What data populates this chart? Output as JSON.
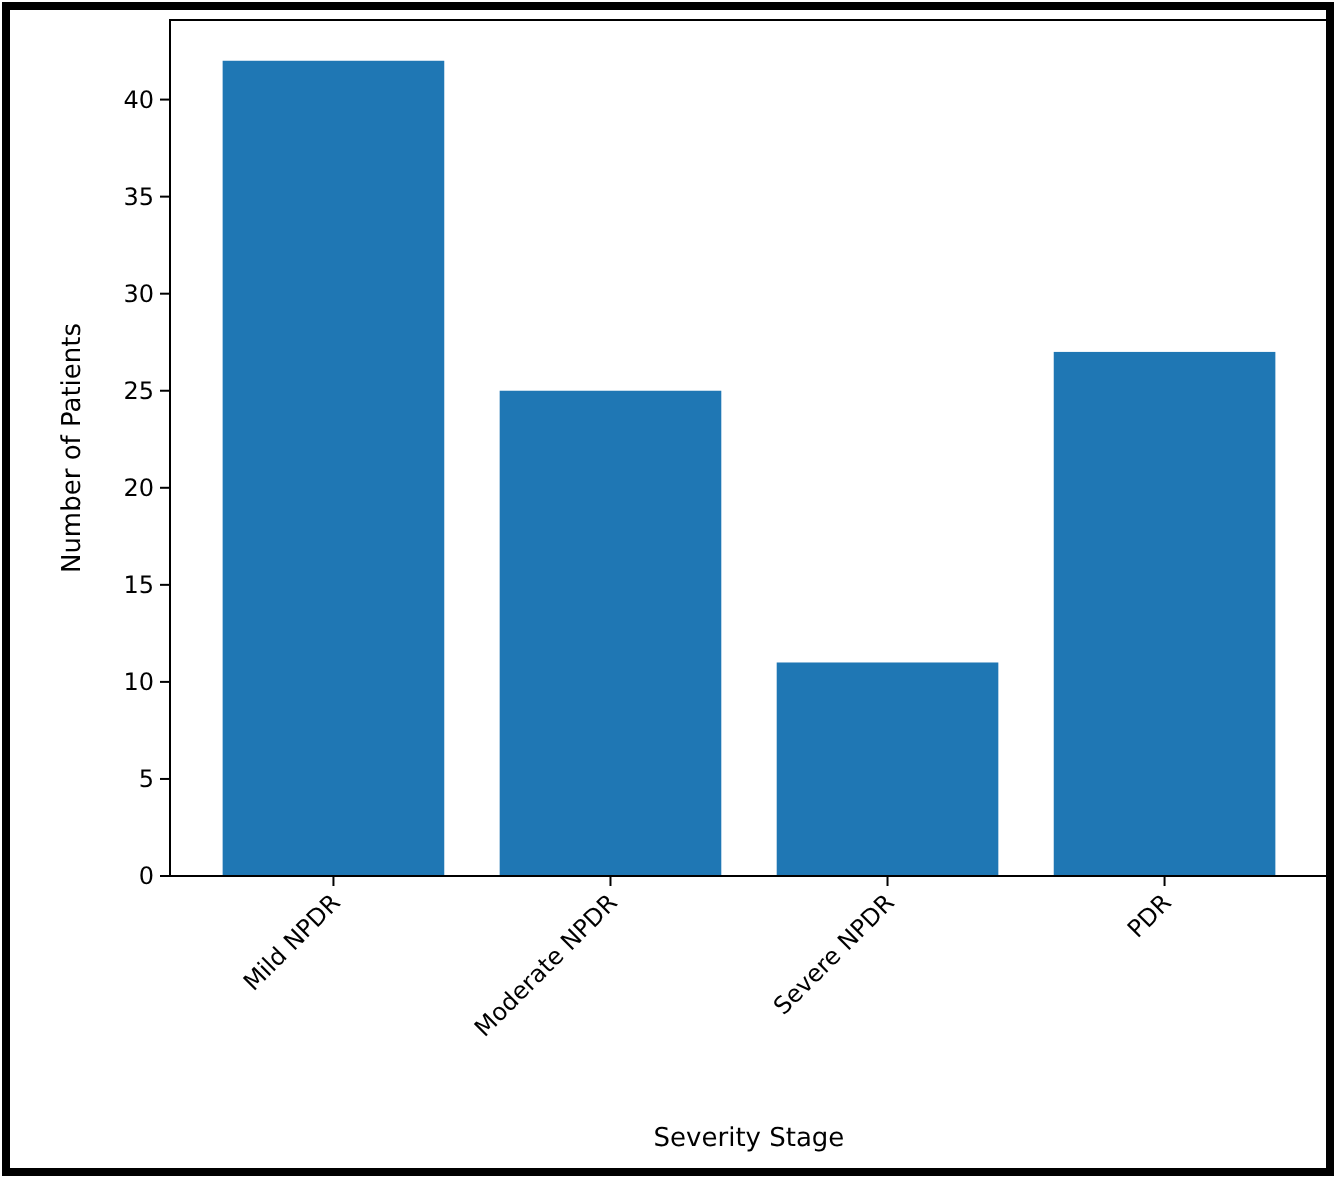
{
  "chart_data": {
    "type": "bar",
    "xlabel": "Severity Stage",
    "ylabel": "Number of Patients",
    "categories": [
      "Mild NPDR",
      "Moderate NPDR",
      "Severe NPDR",
      "PDR"
    ],
    "values": [
      42,
      25,
      11,
      27
    ],
    "color": "#1f77b4",
    "ylim": [
      0,
      44.1
    ],
    "yticks": [
      0,
      5,
      10,
      15,
      20,
      25,
      30,
      35,
      40
    ],
    "grid": false
  }
}
